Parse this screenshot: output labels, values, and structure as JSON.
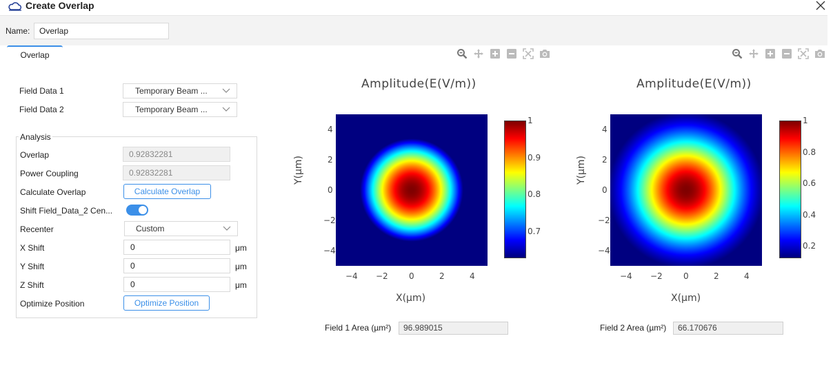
{
  "window": {
    "title": "Create Overlap",
    "logo_icon": "cloud-icon",
    "close_icon": "close-icon"
  },
  "name": {
    "label": "Name:",
    "value": "Overlap"
  },
  "tabs": [
    {
      "label": "Overlap",
      "active": true
    }
  ],
  "form": {
    "field_data_1": {
      "label": "Field Data 1",
      "value": "Temporary Beam ..."
    },
    "field_data_2": {
      "label": "Field Data 2",
      "value": "Temporary Beam ..."
    },
    "analysis": {
      "title": "Analysis",
      "overlap": {
        "label": "Overlap",
        "value": "0.92832281"
      },
      "power_coupling": {
        "label": "Power Coupling",
        "value": "0.92832281"
      },
      "calculate": {
        "label": "Calculate Overlap",
        "button": "Calculate Overlap"
      },
      "shift": {
        "label": "Shift Field_Data_2 Cen...",
        "enabled": true
      },
      "recenter": {
        "label": "Recenter",
        "value": "Custom"
      },
      "x_shift": {
        "label": "X Shift",
        "value": "0",
        "unit": "μm"
      },
      "y_shift": {
        "label": "Y Shift",
        "value": "0",
        "unit": "μm"
      },
      "z_shift": {
        "label": "Z Shift",
        "value": "0",
        "unit": "μm"
      },
      "optimize": {
        "label": "Optimize Position",
        "button": "Optimize Position"
      }
    }
  },
  "toolbar_icons": [
    "zoom-icon",
    "pan-icon",
    "zoom-in-icon",
    "zoom-out-icon",
    "reset-axes-icon",
    "camera-icon"
  ],
  "colors": {
    "accent": "#3b8fe8",
    "colormap": "jet"
  },
  "chart_data": [
    {
      "type": "heatmap",
      "title": "Amplitude(E(V/m))",
      "xlabel": "X(μm)",
      "ylabel": "Y(μm)",
      "x_ticks": [
        "−4",
        "−2",
        "0",
        "2",
        "4"
      ],
      "y_ticks": [
        "4",
        "2",
        "0",
        "−2",
        "−4"
      ],
      "xlim": [
        -5,
        5
      ],
      "ylim": [
        -5,
        5
      ],
      "colorbar_ticks": [
        "1",
        "0.9",
        "0.8",
        "0.7"
      ],
      "colorbar_range": [
        0.63,
        1.0
      ],
      "area_label": "Field 1 Area (µm²)",
      "area_value": "96.989015"
    },
    {
      "type": "heatmap",
      "title": "Amplitude(E(V/m))",
      "xlabel": "X(μm)",
      "ylabel": "Y(μm)",
      "x_ticks": [
        "−4",
        "−2",
        "0",
        "2",
        "4"
      ],
      "y_ticks": [
        "4",
        "2",
        "0",
        "−2",
        "−4"
      ],
      "xlim": [
        -5,
        5
      ],
      "ylim": [
        -5,
        5
      ],
      "colorbar_ticks": [
        "1",
        "0.8",
        "0.6",
        "0.4",
        "0.2"
      ],
      "colorbar_range": [
        0.13,
        1.0
      ],
      "area_label": "Field 2 Area (µm²)",
      "area_value": "66.170676"
    }
  ]
}
